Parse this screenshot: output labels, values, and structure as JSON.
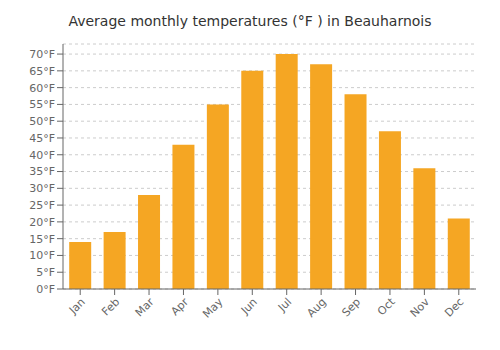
{
  "chart_data": {
    "type": "bar",
    "title": "Average monthly temperatures (°F ) in Beauharnois",
    "categories": [
      "Jan",
      "Feb",
      "Mar",
      "Apr",
      "May",
      "Jun",
      "Jul",
      "Aug",
      "Sep",
      "Oct",
      "Nov",
      "Dec"
    ],
    "values": [
      14,
      17,
      28,
      43,
      55,
      65,
      70,
      67,
      58,
      47,
      36,
      21
    ],
    "color": "#F5A623",
    "ylim": [
      0,
      73
    ],
    "yticks": [
      {
        "value": 0,
        "label": "0°F"
      },
      {
        "value": 5,
        "label": "5°F"
      },
      {
        "value": 10,
        "label": "10°F"
      },
      {
        "value": 15,
        "label": "15°F"
      },
      {
        "value": 20,
        "label": "20°F"
      },
      {
        "value": 25,
        "label": "25°F"
      },
      {
        "value": 30,
        "label": "30°F"
      },
      {
        "value": 35,
        "label": "35°F"
      },
      {
        "value": 40,
        "label": "40°F"
      },
      {
        "value": 45,
        "label": "45°F"
      },
      {
        "value": 50,
        "label": "50°F"
      },
      {
        "value": 55,
        "label": "55°F"
      },
      {
        "value": 60,
        "label": "60°F"
      },
      {
        "value": 65,
        "label": "65°F"
      },
      {
        "value": 70,
        "label": "70°F"
      }
    ],
    "grid": true
  }
}
